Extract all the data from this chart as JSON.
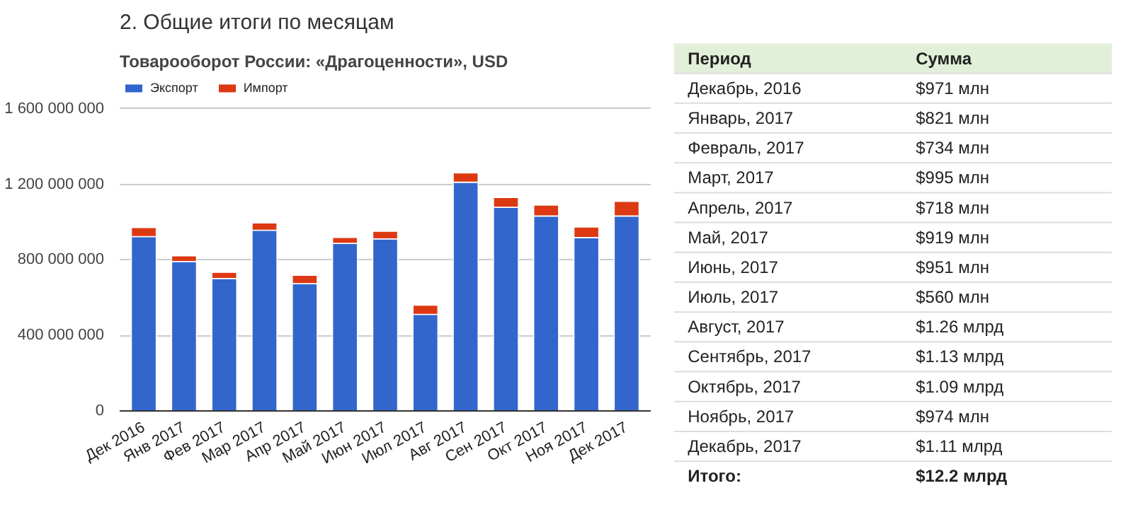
{
  "chart_data": [
    {
      "type": "bar",
      "title": "Товарооборот России: «Драгоценности», USD",
      "annotations": [
        "2. Общие итоги по месяцам"
      ],
      "categories": [
        "Дек 2016",
        "Янв 2017",
        "Фев 2017",
        "Мар 2017",
        "Апр 2017",
        "Май 2017",
        "Июн 2017",
        "Июл 2017",
        "Авг 2017",
        "Сен 2017",
        "Окт 2017",
        "Ноя 2017",
        "Дек 2017"
      ],
      "stacked": true,
      "series": [
        {
          "name": "Экспорт",
          "color": "#3366cc",
          "values": [
            923000000,
            791000000,
            701000000,
            957000000,
            674000000,
            887000000,
            911000000,
            511000000,
            1211000000,
            1078000000,
            1032000000,
            918000000,
            1032000000
          ]
        },
        {
          "name": "Импорт",
          "color": "#dc3912",
          "values": [
            48000000,
            30000000,
            33000000,
            38000000,
            44000000,
            32000000,
            40000000,
            49000000,
            49000000,
            52000000,
            58000000,
            56000000,
            78000000
          ]
        }
      ],
      "ylim": [
        0,
        1760000000
      ],
      "yticks": [
        0,
        {
          "value": 400000000,
          "label": "400 000 000"
        },
        {
          "value": 800000000,
          "label": "800 000 000"
        },
        {
          "value": 1200000000,
          "label": "1 200 000 000"
        },
        {
          "value": 1600000000,
          "label": "1 600 000 000"
        }
      ],
      "grid": "y",
      "legend": "top left"
    },
    {
      "type": "other",
      "annotations": [
        "Период",
        "Сумма",
        "Декабрь, 2016",
        "$971 млн",
        "Январь, 2017",
        "$821 млн",
        "Февраль, 2017",
        "$734 млн",
        "Март, 2017",
        "$995 млн",
        "Апрель, 2017",
        "$718 млн",
        "Май, 2017",
        "$919 млн",
        "Июнь, 2017",
        "$951 млн",
        "Июль, 2017",
        "$560 млн",
        "Август, 2017",
        "$1.26 млрд",
        "Сентябрь, 2017",
        "$1.13 млрд",
        "Октябрь, 2017",
        "$1.09 млрд",
        "Ноябрь, 2017",
        "$974 млн",
        "Декабрь, 2017",
        "$1.11 млрд",
        "Итого:",
        "$12.2 млрд"
      ]
    }
  ]
}
